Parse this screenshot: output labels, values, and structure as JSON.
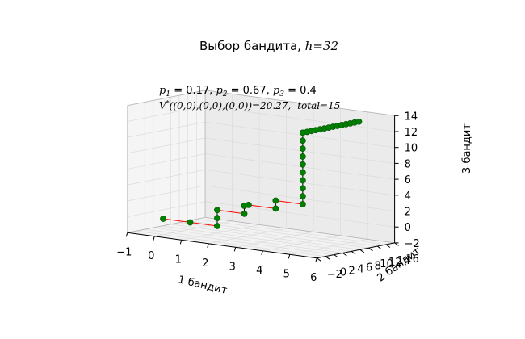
{
  "chart_data": {
    "type": "scatter",
    "projection": "3d",
    "title": {
      "text": "Выбор бандита, ",
      "math": "h",
      "suffix": "=32"
    },
    "annotation": {
      "line1": {
        "p1_label": "p",
        "p1_sub": "1",
        "p1_value": " = 0.17, ",
        "p2_label": "p",
        "p2_sub": "2",
        "p2_value": " = 0.67, ",
        "p3_label": "p",
        "p3_sub": "3",
        "p3_value": " = 0.4"
      },
      "line2": {
        "label": "V",
        "sup": "*",
        "text": "((0,0),(0,0),(0,0))=20.27,",
        "total": "total=15"
      }
    },
    "xlabel": "1 бандит",
    "ylabel": "2 бандит",
    "zlabel": "3 бандит",
    "xlim": [
      -1,
      6
    ],
    "ylim": [
      -2,
      16
    ],
    "zlim": [
      -2,
      14
    ],
    "xticks": [
      "−1",
      "0",
      "1",
      "2",
      "3",
      "4",
      "5",
      "6"
    ],
    "yticks": [
      "−2",
      "0",
      "2",
      "4",
      "6",
      "8",
      "10",
      "12",
      "14",
      "16"
    ],
    "zticks": [
      "−2",
      "0",
      "2",
      "4",
      "6",
      "8",
      "10",
      "12",
      "14"
    ],
    "grid": true,
    "point_color": "#008000",
    "failure_line_color": "#ff0000",
    "success_line_color": "#000000",
    "points": [
      {
        "x": 0,
        "y": 0,
        "z": 0
      },
      {
        "x": 1,
        "y": 0,
        "z": 0
      },
      {
        "x": 2,
        "y": 0,
        "z": 0
      },
      {
        "x": 2,
        "y": 0,
        "z": 1
      },
      {
        "x": 2,
        "y": 0,
        "z": 2
      },
      {
        "x": 3,
        "y": 0,
        "z": 2
      },
      {
        "x": 3,
        "y": 0,
        "z": 3
      },
      {
        "x": 3,
        "y": 1,
        "z": 3
      },
      {
        "x": 4,
        "y": 1,
        "z": 3
      },
      {
        "x": 4,
        "y": 1,
        "z": 4
      },
      {
        "x": 5,
        "y": 1,
        "z": 4
      },
      {
        "x": 5,
        "y": 1,
        "z": 5
      },
      {
        "x": 5,
        "y": 1,
        "z": 6
      },
      {
        "x": 5,
        "y": 1,
        "z": 7
      },
      {
        "x": 5,
        "y": 1,
        "z": 8
      },
      {
        "x": 5,
        "y": 1,
        "z": 9
      },
      {
        "x": 5,
        "y": 1,
        "z": 10
      },
      {
        "x": 5,
        "y": 1,
        "z": 11
      },
      {
        "x": 5,
        "y": 1,
        "z": 12
      },
      {
        "x": 5,
        "y": 1,
        "z": 13
      },
      {
        "x": 5,
        "y": 2,
        "z": 13
      },
      {
        "x": 5,
        "y": 3,
        "z": 13
      },
      {
        "x": 5,
        "y": 4,
        "z": 13
      },
      {
        "x": 5,
        "y": 5,
        "z": 13
      },
      {
        "x": 5,
        "y": 6,
        "z": 13
      },
      {
        "x": 5,
        "y": 7,
        "z": 13
      },
      {
        "x": 5,
        "y": 8,
        "z": 13
      },
      {
        "x": 5,
        "y": 9,
        "z": 13
      },
      {
        "x": 5,
        "y": 10,
        "z": 13
      },
      {
        "x": 5,
        "y": 11,
        "z": 13
      },
      {
        "x": 5,
        "y": 12,
        "z": 13
      },
      {
        "x": 5,
        "y": 13,
        "z": 13
      },
      {
        "x": 5,
        "y": 14,
        "z": 13
      }
    ]
  }
}
